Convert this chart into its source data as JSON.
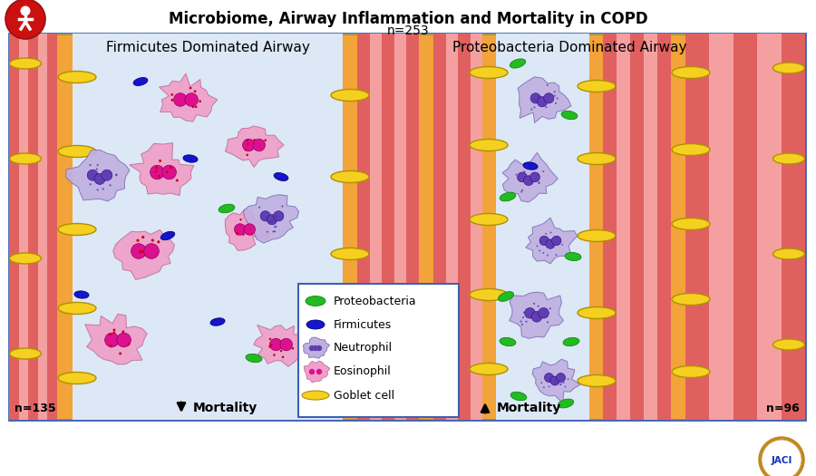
{
  "title": "Microbiome, Airway Inflammation and Mortality in COPD",
  "subtitle": "n=253",
  "left_panel_title": "Firmicutes Dominated Airway",
  "right_panel_title": "Proteobacteria Dominated Airway",
  "left_n": "n=135",
  "right_n": "n=96",
  "bg_color": "#f08080",
  "stripe_dark": "#e06060",
  "stripe_light": "#f5a0a0",
  "lumen_color": "#dce8f5",
  "yellow_color": "#f5d020",
  "green_color": "#22bb22",
  "blue_color": "#1515cc",
  "eo_outer": "#f0a0c8",
  "eo_inner": "#dd1090",
  "neut_outer": "#c0b0e0",
  "neut_inner": "#6040b0",
  "panel_edge": "#4060b0",
  "legend_items": [
    "Proteobacteria",
    "Firmicutes",
    "Neutrophil",
    "Eosinophil",
    "Goblet cell"
  ],
  "fig_bg": "#ffffff"
}
